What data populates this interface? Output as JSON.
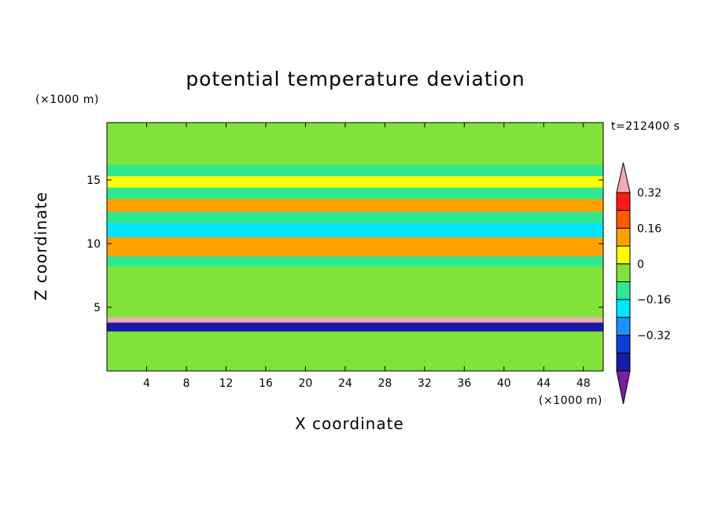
{
  "chart_data": {
    "type": "heatmap",
    "title": "potential temperature deviation",
    "xlabel": "X coordinate",
    "ylabel": "Z coordinate",
    "x_unit": "(×1000 m)",
    "y_unit": "(×1000 m)",
    "time_label": "t=212400 s",
    "xlim": [
      0,
      50
    ],
    "ylim": [
      0,
      19.5
    ],
    "x_ticks": [
      4,
      8,
      12,
      16,
      20,
      24,
      28,
      32,
      36,
      40,
      44,
      48
    ],
    "y_ticks": [
      5,
      10,
      15
    ],
    "colorbar": {
      "levels": [
        -0.4,
        -0.32,
        -0.24,
        -0.16,
        -0.08,
        0,
        0.08,
        0.16,
        0.24,
        0.32,
        0.4
      ],
      "labels": [
        0.32,
        0.16,
        0,
        -0.16,
        -0.32
      ],
      "colors": [
        "#7b1fa2",
        "#1a1aa6",
        "#0d3fd8",
        "#1e90ff",
        "#00e5ff",
        "#2ee88f",
        "#7fe33a",
        "#ffff00",
        "#ffa200",
        "#ff5a00",
        "#ff1a1a",
        "#f5a9b8"
      ]
    },
    "bands": [
      {
        "z": [
          0,
          0.6
        ],
        "value": 0.02
      },
      {
        "z": [
          0.6,
          2.6
        ],
        "value": 0.06
      },
      {
        "z": [
          2.6,
          3.1
        ],
        "value": 0.0
      },
      {
        "z": [
          3.1,
          3.8
        ],
        "value": -0.36
      },
      {
        "z": [
          3.8,
          4.2
        ],
        "value": 0.42
      },
      {
        "z": [
          4.2,
          8.2
        ],
        "value": 0.04
      },
      {
        "z": [
          8.2,
          9.0
        ],
        "value": -0.05
      },
      {
        "z": [
          9.0,
          10.5
        ],
        "value": 0.2
      },
      {
        "z": [
          10.5,
          11.6
        ],
        "value": -0.1
      },
      {
        "z": [
          11.6,
          12.5
        ],
        "value": -0.06
      },
      {
        "z": [
          12.5,
          13.5
        ],
        "value": 0.18
      },
      {
        "z": [
          13.5,
          14.4
        ],
        "value": -0.04
      },
      {
        "z": [
          14.4,
          15.3
        ],
        "value": 0.1
      },
      {
        "z": [
          15.3,
          16.2
        ],
        "value": -0.02
      },
      {
        "z": [
          16.2,
          19.5
        ],
        "value": 0.04
      }
    ]
  }
}
